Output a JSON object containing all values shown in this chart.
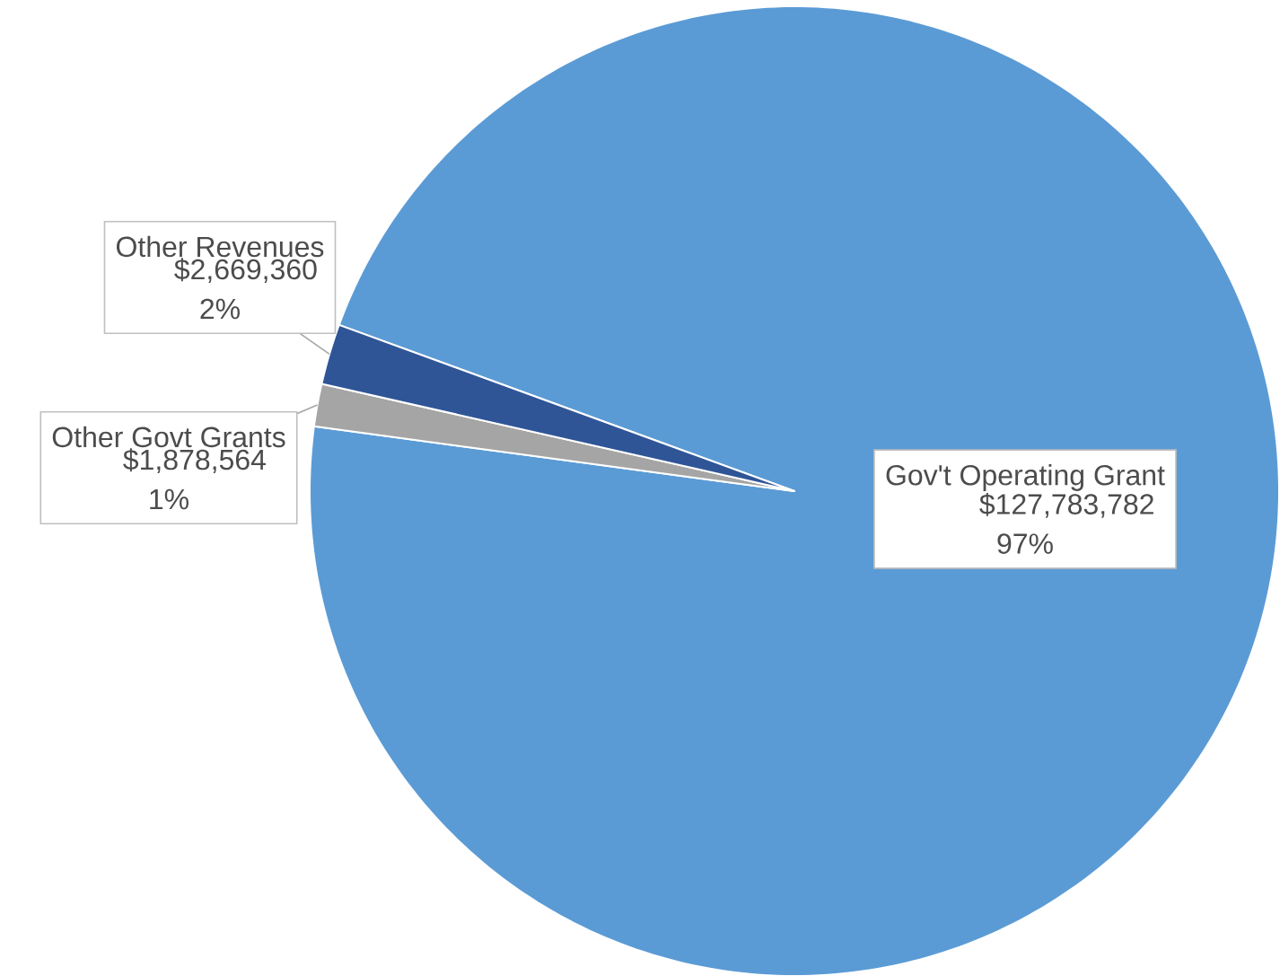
{
  "chart_data": {
    "type": "pie",
    "categories": [
      "Gov't Operating Grant",
      "Other Govt Grants",
      "Other Revenues"
    ],
    "values": [
      127783782,
      1878564,
      2669360
    ],
    "colors": [
      "#5b9bd5",
      "#a5a5a5",
      "#2f5597"
    ],
    "value_labels": [
      "$127,783,782 97%",
      "$1,878,564 1%",
      "$2,669,360 2%"
    ]
  }
}
